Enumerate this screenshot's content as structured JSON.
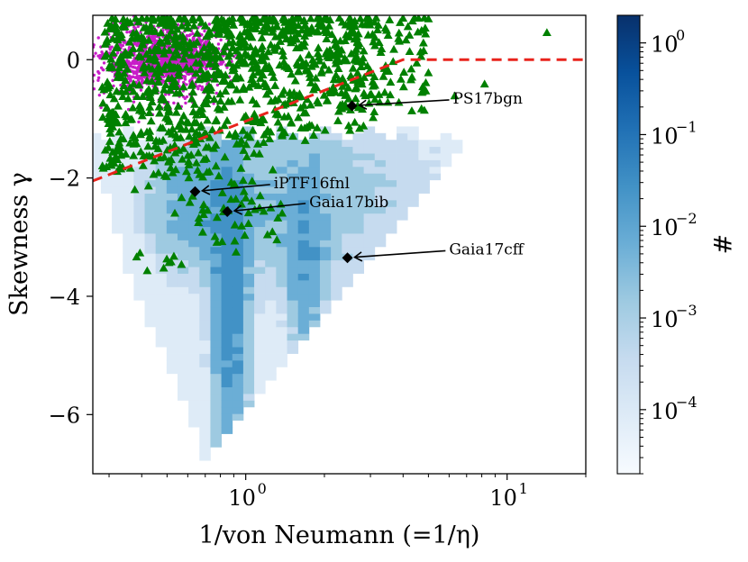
{
  "chart_data": {
    "type": "scatter",
    "title": "",
    "xlabel": "1/von Neumann (=1/η)",
    "ylabel": "Skewness γ",
    "xscale": "log",
    "xlim": [
      0.26,
      20
    ],
    "ylim": [
      -7.0,
      0.75
    ],
    "x_ticks": [
      {
        "value": 1,
        "base": "10",
        "exp": "0"
      },
      {
        "value": 10,
        "base": "10",
        "exp": "1"
      }
    ],
    "y_ticks": [
      {
        "value": 0,
        "label": "0"
      },
      {
        "value": -2,
        "label": "−2"
      },
      {
        "value": -4,
        "label": "−4"
      },
      {
        "value": -6,
        "label": "−6"
      }
    ],
    "colorbar": {
      "label": "#",
      "scale": "log",
      "range": [
        2e-05,
        2.0
      ],
      "ticks": [
        {
          "value": 1,
          "base": "10",
          "exp": "0"
        },
        {
          "value": 0.1,
          "base": "10",
          "exp": "−1"
        },
        {
          "value": 0.01,
          "base": "10",
          "exp": "−2"
        },
        {
          "value": 0.001,
          "base": "10",
          "exp": "−3"
        },
        {
          "value": 0.0001,
          "base": "10",
          "exp": "−4"
        }
      ],
      "colors": [
        "#f7fbff",
        "#deebf7",
        "#c6dbef",
        "#9ecae1",
        "#6baed6",
        "#4292c6",
        "#2171b5",
        "#08519c",
        "#08306b"
      ]
    },
    "series": [
      {
        "name": "2D density histogram",
        "kind": "histogram2d",
        "color": "#2171b5"
      },
      {
        "name": "magenta population",
        "kind": "scatter",
        "marker": "circle",
        "color": "#c81dc8",
        "center": [
          0.48,
          0.0
        ],
        "spread": [
          0.12,
          0.28
        ]
      },
      {
        "name": "green population",
        "kind": "scatter",
        "marker": "triangle",
        "color": "#008000"
      }
    ],
    "boundary_line": {
      "style": "dashed",
      "color": "#e8231c",
      "points": [
        [
          0.26,
          -2.05
        ],
        [
          4.0,
          0.0
        ],
        [
          20.0,
          0.0
        ]
      ]
    },
    "annotations": [
      {
        "label": "PS17bgn",
        "x": 2.55,
        "y": -0.78,
        "text_x": 6.2,
        "text_y": -0.65
      },
      {
        "label": "iPTF16fnl",
        "x": 0.64,
        "y": -2.23,
        "text_x": 1.28,
        "text_y": -2.08
      },
      {
        "label": "Gaia17bib",
        "x": 0.85,
        "y": -2.57,
        "text_x": 1.75,
        "text_y": -2.4
      },
      {
        "label": "Gaia17cff",
        "x": 2.45,
        "y": -3.35,
        "text_x": 6.0,
        "text_y": -3.2
      }
    ]
  }
}
